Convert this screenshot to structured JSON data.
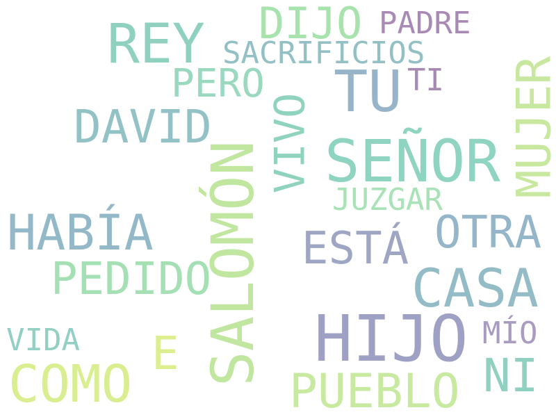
{
  "words": [
    {
      "id": "hijo",
      "text": "HIJO",
      "color": "#9ea1c4",
      "orientation": "horizontal"
    },
    {
      "id": "salomon",
      "text": "SALOMÓN",
      "color": "#c0e6a0",
      "orientation": "vertical"
    },
    {
      "id": "senor",
      "text": "SEÑOR",
      "color": "#8fd4c0",
      "orientation": "horizontal"
    },
    {
      "id": "rey",
      "text": "REY",
      "color": "#8fd0be",
      "orientation": "horizontal"
    },
    {
      "id": "habia",
      "text": "HABÍA",
      "color": "#93b8c8",
      "orientation": "horizontal"
    },
    {
      "id": "tu",
      "text": "TU",
      "color": "#98b4c9",
      "orientation": "horizontal"
    },
    {
      "id": "como",
      "text": "COMO",
      "color": "#d8ee90",
      "orientation": "horizontal"
    },
    {
      "id": "mujer",
      "text": "MUJER",
      "color": "#c8e8a0",
      "orientation": "vertical"
    },
    {
      "id": "casa",
      "text": "CASA",
      "color": "#93bcc6",
      "orientation": "horizontal"
    },
    {
      "id": "pueblo",
      "text": "PUEBLO",
      "color": "#c8eaa0",
      "orientation": "horizontal"
    },
    {
      "id": "david",
      "text": "DAVID",
      "color": "#93c2c6",
      "orientation": "horizontal"
    },
    {
      "id": "pedido",
      "text": "PEDIDO",
      "color": "#a4e0b4",
      "orientation": "horizontal"
    },
    {
      "id": "otra",
      "text": "OTRA",
      "color": "#95b6c8",
      "orientation": "horizontal"
    },
    {
      "id": "vivo",
      "text": "VIVO",
      "color": "#8fd3bf",
      "orientation": "vertical"
    },
    {
      "id": "dijo",
      "text": "DIJO",
      "color": "#a8e2ac",
      "orientation": "horizontal"
    },
    {
      "id": "esta",
      "text": "ESTÁ",
      "color": "#9ea6c4",
      "orientation": "horizontal"
    },
    {
      "id": "ni",
      "text": "NI",
      "color": "#8fd0c0",
      "orientation": "horizontal"
    },
    {
      "id": "e",
      "text": "E",
      "color": "#dcef8f",
      "orientation": "horizontal"
    },
    {
      "id": "pero",
      "text": "PERO",
      "color": "#9ad8c0",
      "orientation": "horizontal"
    },
    {
      "id": "sacrificios",
      "text": "SACRIFICIOS",
      "color": "#93c0c4",
      "orientation": "horizontal"
    },
    {
      "id": "vida",
      "text": "VIDA",
      "color": "#93cfc2",
      "orientation": "horizontal"
    },
    {
      "id": "juzgar",
      "text": "JUZGAR",
      "color": "#a8e2b6",
      "orientation": "horizontal"
    },
    {
      "id": "padre",
      "text": "PADRE",
      "color": "#a98ab4",
      "orientation": "horizontal"
    },
    {
      "id": "mio",
      "text": "MÍO",
      "color": "#a99cc0",
      "orientation": "horizontal"
    },
    {
      "id": "ti",
      "text": "TI",
      "color": "#a68ab2",
      "orientation": "horizontal"
    }
  ]
}
